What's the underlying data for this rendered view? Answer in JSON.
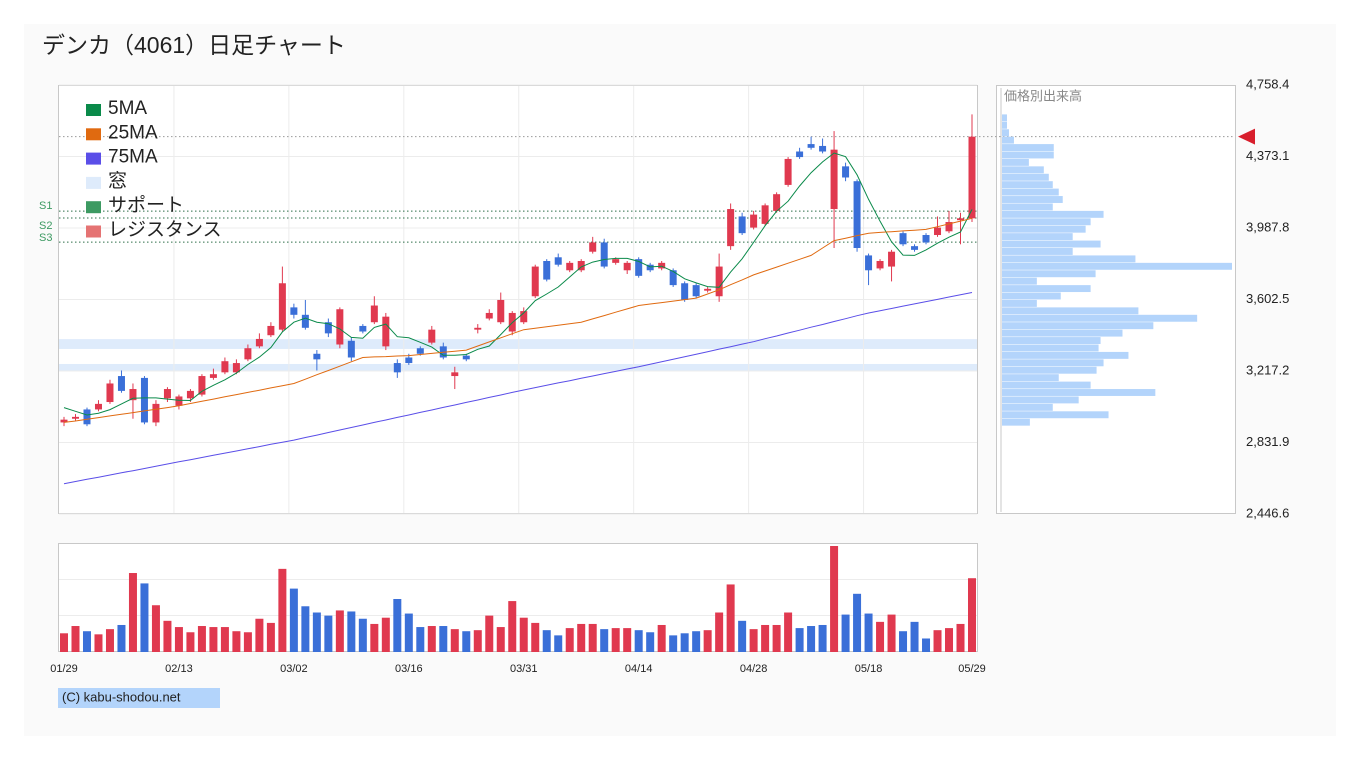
{
  "chart_data": {
    "type": "candlestick",
    "title": "デンカ（4061）日足チャート",
    "categories": [
      "01/29",
      null,
      null,
      null,
      null,
      null,
      null,
      null,
      null,
      null,
      "02/13",
      null,
      null,
      null,
      null,
      null,
      null,
      null,
      null,
      null,
      "03/02",
      null,
      null,
      null,
      null,
      null,
      null,
      null,
      null,
      null,
      "03/16",
      null,
      null,
      null,
      null,
      null,
      null,
      null,
      null,
      null,
      "03/31",
      null,
      null,
      null,
      null,
      null,
      null,
      null,
      null,
      null,
      "04/14",
      null,
      null,
      null,
      null,
      null,
      null,
      null,
      null,
      null,
      "04/28",
      null,
      null,
      null,
      null,
      null,
      null,
      null,
      null,
      null,
      "05/18",
      null,
      null,
      null,
      null,
      null,
      null,
      null,
      null,
      "05/29"
    ],
    "open": [
      2940,
      2960,
      3010,
      3010,
      3050,
      3190,
      3060,
      3180,
      2940,
      3070,
      3030,
      3070,
      3090,
      3180,
      3210,
      3210,
      3280,
      3350,
      3410,
      3440,
      3560,
      3520,
      3310,
      3480,
      3360,
      3380,
      3460,
      3480,
      3350,
      3260,
      3290,
      3340,
      3370,
      3350,
      3190,
      3300,
      3440,
      3500,
      3480,
      3430,
      3480,
      3620,
      3810,
      3830,
      3760,
      3760,
      3860,
      3910,
      3800,
      3760,
      3820,
      3790,
      3770,
      3760,
      3690,
      3680,
      3650,
      3620,
      3890,
      4050,
      3990,
      4010,
      4080,
      4220,
      4400,
      4440,
      4430,
      4090,
      4320,
      4240,
      3840,
      3770,
      3780,
      3960,
      3890,
      3950,
      3950,
      3970,
      4030,
      4040
    ],
    "high": [
      2970,
      2985,
      3020,
      3060,
      3170,
      3220,
      3150,
      3190,
      3060,
      3130,
      3090,
      3120,
      3200,
      3230,
      3290,
      3280,
      3360,
      3420,
      3480,
      3780,
      3580,
      3600,
      3330,
      3500,
      3560,
      3400,
      3470,
      3620,
      3530,
      3280,
      3310,
      3350,
      3460,
      3370,
      3240,
      3310,
      3470,
      3550,
      3640,
      3540,
      3560,
      3790,
      3820,
      3850,
      3810,
      3820,
      3940,
      3930,
      3830,
      3810,
      3830,
      3800,
      3810,
      3770,
      3700,
      3690,
      3670,
      3850,
      4120,
      4070,
      4080,
      4120,
      4180,
      4370,
      4420,
      4480,
      4470,
      4510,
      4340,
      4250,
      3850,
      3820,
      3870,
      3970,
      3900,
      3960,
      4050,
      4080,
      4070,
      4600
    ],
    "low": [
      2920,
      2950,
      2920,
      3000,
      3040,
      3100,
      2960,
      2930,
      2920,
      3050,
      3010,
      3050,
      3080,
      3170,
      3200,
      3200,
      3270,
      3340,
      3400,
      3430,
      3500,
      3440,
      3220,
      3400,
      3340,
      3270,
      3420,
      3470,
      3330,
      3180,
      3250,
      3300,
      3360,
      3280,
      3120,
      3270,
      3420,
      3490,
      3470,
      3410,
      3470,
      3610,
      3700,
      3780,
      3750,
      3750,
      3850,
      3770,
      3790,
      3740,
      3720,
      3750,
      3760,
      3670,
      3590,
      3610,
      3640,
      3590,
      3870,
      3950,
      3980,
      4000,
      4070,
      4210,
      4360,
      4410,
      4390,
      3880,
      4240,
      3860,
      3680,
      3760,
      3700,
      3890,
      3860,
      3900,
      3940,
      3960,
      3900,
      4020
    ],
    "close": [
      2955,
      2970,
      2930,
      3040,
      3150,
      3110,
      3120,
      2940,
      3040,
      3120,
      3080,
      3110,
      3190,
      3200,
      3270,
      3260,
      3340,
      3390,
      3460,
      3690,
      3520,
      3450,
      3280,
      3420,
      3550,
      3290,
      3430,
      3570,
      3510,
      3210,
      3260,
      3310,
      3440,
      3290,
      3210,
      3280,
      3450,
      3530,
      3600,
      3530,
      3540,
      3780,
      3710,
      3790,
      3800,
      3810,
      3910,
      3780,
      3820,
      3800,
      3730,
      3760,
      3800,
      3680,
      3600,
      3620,
      3660,
      3780,
      4090,
      3960,
      4060,
      4110,
      4170,
      4360,
      4370,
      4420,
      4400,
      4410,
      4260,
      3880,
      3760,
      3810,
      3860,
      3900,
      3870,
      3910,
      3990,
      4020,
      4040,
      4480
    ],
    "volume": [
      90000,
      125000,
      100000,
      85000,
      110000,
      130000,
      380000,
      330000,
      225000,
      150000,
      120000,
      95000,
      125000,
      120000,
      120000,
      100000,
      95000,
      160000,
      140000,
      400000,
      305000,
      220000,
      190000,
      175000,
      200000,
      195000,
      160000,
      135000,
      165000,
      255000,
      185000,
      120000,
      125000,
      125000,
      110000,
      100000,
      105000,
      175000,
      120000,
      245000,
      165000,
      140000,
      105000,
      80000,
      115000,
      135000,
      135000,
      110000,
      115000,
      115000,
      105000,
      95000,
      130000,
      80000,
      90000,
      100000,
      105000,
      190000,
      325000,
      150000,
      110000,
      130000,
      130000,
      190000,
      115000,
      125000,
      130000,
      510000,
      180000,
      280000,
      185000,
      145000,
      180000,
      100000,
      145000,
      65000,
      105000,
      115000,
      135000,
      355000
    ],
    "up_color": "#e0394f",
    "down_color": "#3a6fd8",
    "ma": [
      {
        "name": "5MA",
        "color": "#0a8a4a",
        "values": [
          3020,
          3000,
          2980,
          2990,
          3009,
          3040,
          3070,
          3072,
          3072,
          3066,
          3060,
          3058,
          3108,
          3140,
          3170,
          3206,
          3252,
          3292,
          3344,
          3428,
          3480,
          3502,
          3480,
          3472,
          3444,
          3398,
          3394,
          3452,
          3470,
          3402,
          3396,
          3372,
          3346,
          3302,
          3302,
          3306,
          3334,
          3352,
          3414,
          3478,
          3530,
          3596,
          3632,
          3670,
          3724,
          3778,
          3804,
          3818,
          3824,
          3824,
          3808,
          3778,
          3782,
          3754,
          3714,
          3692,
          3672,
          3668,
          3750,
          3822,
          3910,
          4000,
          4078,
          4132,
          4214,
          4286,
          4344,
          4392,
          4372,
          4274,
          4142,
          4024,
          3914,
          3842,
          3840,
          3870,
          3906,
          3938,
          3966,
          4088
        ]
      },
      {
        "name": "25MA",
        "color": "#e06a10",
        "values": [
          2940,
          2948,
          2957,
          2966,
          2975,
          2984,
          2993,
          3002,
          3011,
          3020,
          3030,
          3042,
          3054,
          3066,
          3078,
          3090,
          3102,
          3114,
          3126,
          3138,
          3150,
          3173,
          3197,
          3220,
          3243,
          3267,
          3290,
          3293,
          3295,
          3298,
          3300,
          3306,
          3312,
          3318,
          3324,
          3330,
          3352,
          3374,
          3396,
          3418,
          3440,
          3448,
          3456,
          3464,
          3472,
          3480,
          3498,
          3516,
          3534,
          3552,
          3570,
          3578,
          3586,
          3594,
          3602,
          3610,
          3632,
          3655,
          3682,
          3708,
          3735,
          3756,
          3777,
          3798,
          3819,
          3840,
          3880,
          3920,
          3933,
          3947,
          3960,
          3964,
          3968,
          3972,
          3976,
          3980,
          3995,
          4010,
          4025,
          4040
        ]
      },
      {
        "name": "75MA",
        "color": "#5a4ee8",
        "values": [
          2610,
          2622,
          2634,
          2645,
          2657,
          2669,
          2680,
          2692,
          2704,
          2716,
          2728,
          2739,
          2751,
          2763,
          2775,
          2786,
          2798,
          2810,
          2822,
          2833,
          2845,
          2859,
          2872,
          2886,
          2899,
          2913,
          2926,
          2940,
          2953,
          2967,
          2980,
          2994,
          3007,
          3021,
          3034,
          3048,
          3061,
          3075,
          3088,
          3102,
          3115,
          3128,
          3140,
          3153,
          3165,
          3178,
          3190,
          3203,
          3215,
          3228,
          3240,
          3254,
          3267,
          3281,
          3294,
          3308,
          3321,
          3335,
          3348,
          3362,
          3375,
          3391,
          3406,
          3422,
          3437,
          3453,
          3468,
          3484,
          3499,
          3515,
          3530,
          3542,
          3554,
          3567,
          3579,
          3591,
          3603,
          3616,
          3628,
          3640
        ]
      }
    ],
    "gaps": {
      "name": "窓",
      "color": "#deebfb",
      "ranges": [
        {
          "low": 3336,
          "high": 3389
        },
        {
          "low": 3217,
          "high": 3255
        }
      ]
    },
    "support": {
      "name": "サポート",
      "color": "#3d9a62",
      "levels": [
        {
          "name": "S1",
          "value": 4079
        },
        {
          "name": "S2",
          "value": 4042
        },
        {
          "name": "S3",
          "value": 3912
        }
      ]
    },
    "resistance": {
      "name": "レジスタンス",
      "color": "#e57373"
    },
    "ylim": [
      2446.6,
      4758.4
    ],
    "yticks": [
      {
        "value": 4758.4,
        "label": "4,758.4"
      },
      {
        "value": 4373.1,
        "label": "4,373.1"
      },
      {
        "value": 3987.8,
        "label": "3,987.8"
      },
      {
        "value": 3602.5,
        "label": "3,602.5"
      },
      {
        "value": 3217.2,
        "label": "3,217.2"
      },
      {
        "value": 2831.9,
        "label": "2,831.9"
      },
      {
        "value": 2446.6,
        "label": "2,446.6"
      }
    ],
    "grid": true,
    "volume_profile": {
      "title": "価格別出来高",
      "color": "#b3d4fb",
      "bins": [
        2920,
        2960,
        3000,
        3040,
        3080,
        3120,
        3160,
        3200,
        3240,
        3280,
        3320,
        3360,
        3400,
        3440,
        3480,
        3520,
        3560,
        3600,
        3640,
        3680,
        3720,
        3760,
        3800,
        3840,
        3880,
        3920,
        3960,
        4000,
        4040,
        4080,
        4120,
        4160,
        4200,
        4240,
        4280,
        4320,
        4360,
        4400,
        4440,
        4480,
        4520,
        4560,
        4600
      ],
      "values": [
        28,
        107,
        51,
        77,
        154,
        89,
        57,
        95,
        102,
        127,
        97,
        99,
        121,
        152,
        196,
        137,
        35,
        59,
        89,
        35,
        94,
        231,
        134,
        71,
        99,
        71,
        84,
        89,
        102,
        51,
        61,
        57,
        51,
        47,
        42,
        27,
        52,
        52,
        12,
        7,
        5,
        5
      ]
    },
    "footer": "(C) kabu-shodou.net"
  }
}
